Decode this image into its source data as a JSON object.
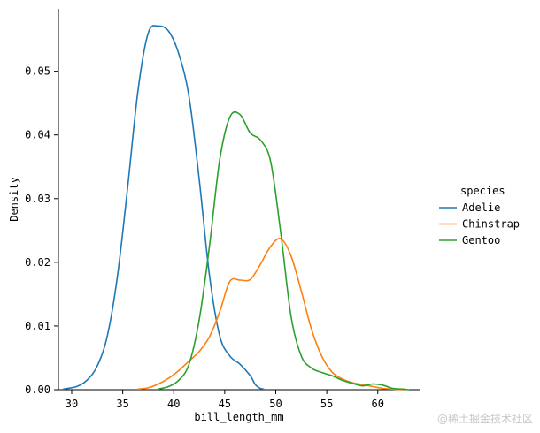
{
  "chart_data": {
    "type": "line",
    "title": "",
    "xlabel": "bill_length_mm",
    "ylabel": "Density",
    "xlim": [
      28.7,
      64.1
    ],
    "ylim": [
      0,
      0.0598
    ],
    "xticks": [
      30,
      35,
      40,
      45,
      50,
      55,
      60
    ],
    "xtick_labels": [
      "30",
      "35",
      "40",
      "45",
      "50",
      "55",
      "60"
    ],
    "yticks": [
      0,
      0.01,
      0.02,
      0.03,
      0.04,
      0.05
    ],
    "ytick_labels": [
      "0.00",
      "0.01",
      "0.02",
      "0.03",
      "0.04",
      "0.05"
    ],
    "grid": false,
    "legend": {
      "title": "species",
      "placement": "right"
    },
    "series": [
      {
        "name": "Adelie",
        "color": "#1f77b4",
        "x": [
          29.2,
          30.5,
          31.5,
          32.5,
          33.5,
          34.5,
          35.5,
          36.5,
          37.5,
          38.5,
          39.5,
          40.5,
          41.5,
          42.5,
          43.5,
          44.5,
          45.5,
          46.5,
          47.5,
          48.0,
          48.5,
          48.8
        ],
        "y": [
          0.0001,
          0.0005,
          0.0015,
          0.0037,
          0.0085,
          0.018,
          0.032,
          0.047,
          0.056,
          0.0571,
          0.0563,
          0.0527,
          0.046,
          0.033,
          0.018,
          0.0085,
          0.0053,
          0.004,
          0.0022,
          0.0008,
          0.0002,
          0.0001
        ]
      },
      {
        "name": "Chinstrap",
        "color": "#ff7f0e",
        "x": [
          36.5,
          37.5,
          38.5,
          39.5,
          40.5,
          41.5,
          42.5,
          43.5,
          44.5,
          45.5,
          46.5,
          47.5,
          48.5,
          49.5,
          50.5,
          51.5,
          52.5,
          53.5,
          54.5,
          55.5,
          56.5,
          57.5,
          58.5,
          59.5,
          60.5,
          61.5,
          62.5
        ],
        "y": [
          0.0001,
          0.0003,
          0.0009,
          0.0018,
          0.003,
          0.0045,
          0.006,
          0.0083,
          0.0122,
          0.017,
          0.0172,
          0.0173,
          0.0197,
          0.0225,
          0.0237,
          0.021,
          0.0155,
          0.0095,
          0.0053,
          0.0028,
          0.0017,
          0.0011,
          0.0008,
          0.0005,
          0.0002,
          0.0001,
          0.0
        ]
      },
      {
        "name": "Gentoo",
        "color": "#2ca02c",
        "x": [
          38.5,
          39.5,
          40.5,
          41.5,
          42.5,
          43.5,
          44.5,
          45.5,
          46.5,
          47.5,
          48.5,
          49.5,
          50.5,
          51.5,
          52.5,
          53.5,
          54.5,
          55.5,
          56.5,
          57.5,
          58.5,
          59.5,
          60.5,
          61.5,
          62.5,
          63.0
        ],
        "y": [
          0.0001,
          0.0005,
          0.0015,
          0.004,
          0.011,
          0.0225,
          0.036,
          0.0428,
          0.0432,
          0.0403,
          0.0392,
          0.0358,
          0.0245,
          0.0115,
          0.0053,
          0.0034,
          0.0027,
          0.0022,
          0.0015,
          0.001,
          0.0006,
          0.0009,
          0.0007,
          0.0002,
          0.0001,
          0.0
        ]
      }
    ]
  },
  "watermark": "@稀土掘金技术社区"
}
